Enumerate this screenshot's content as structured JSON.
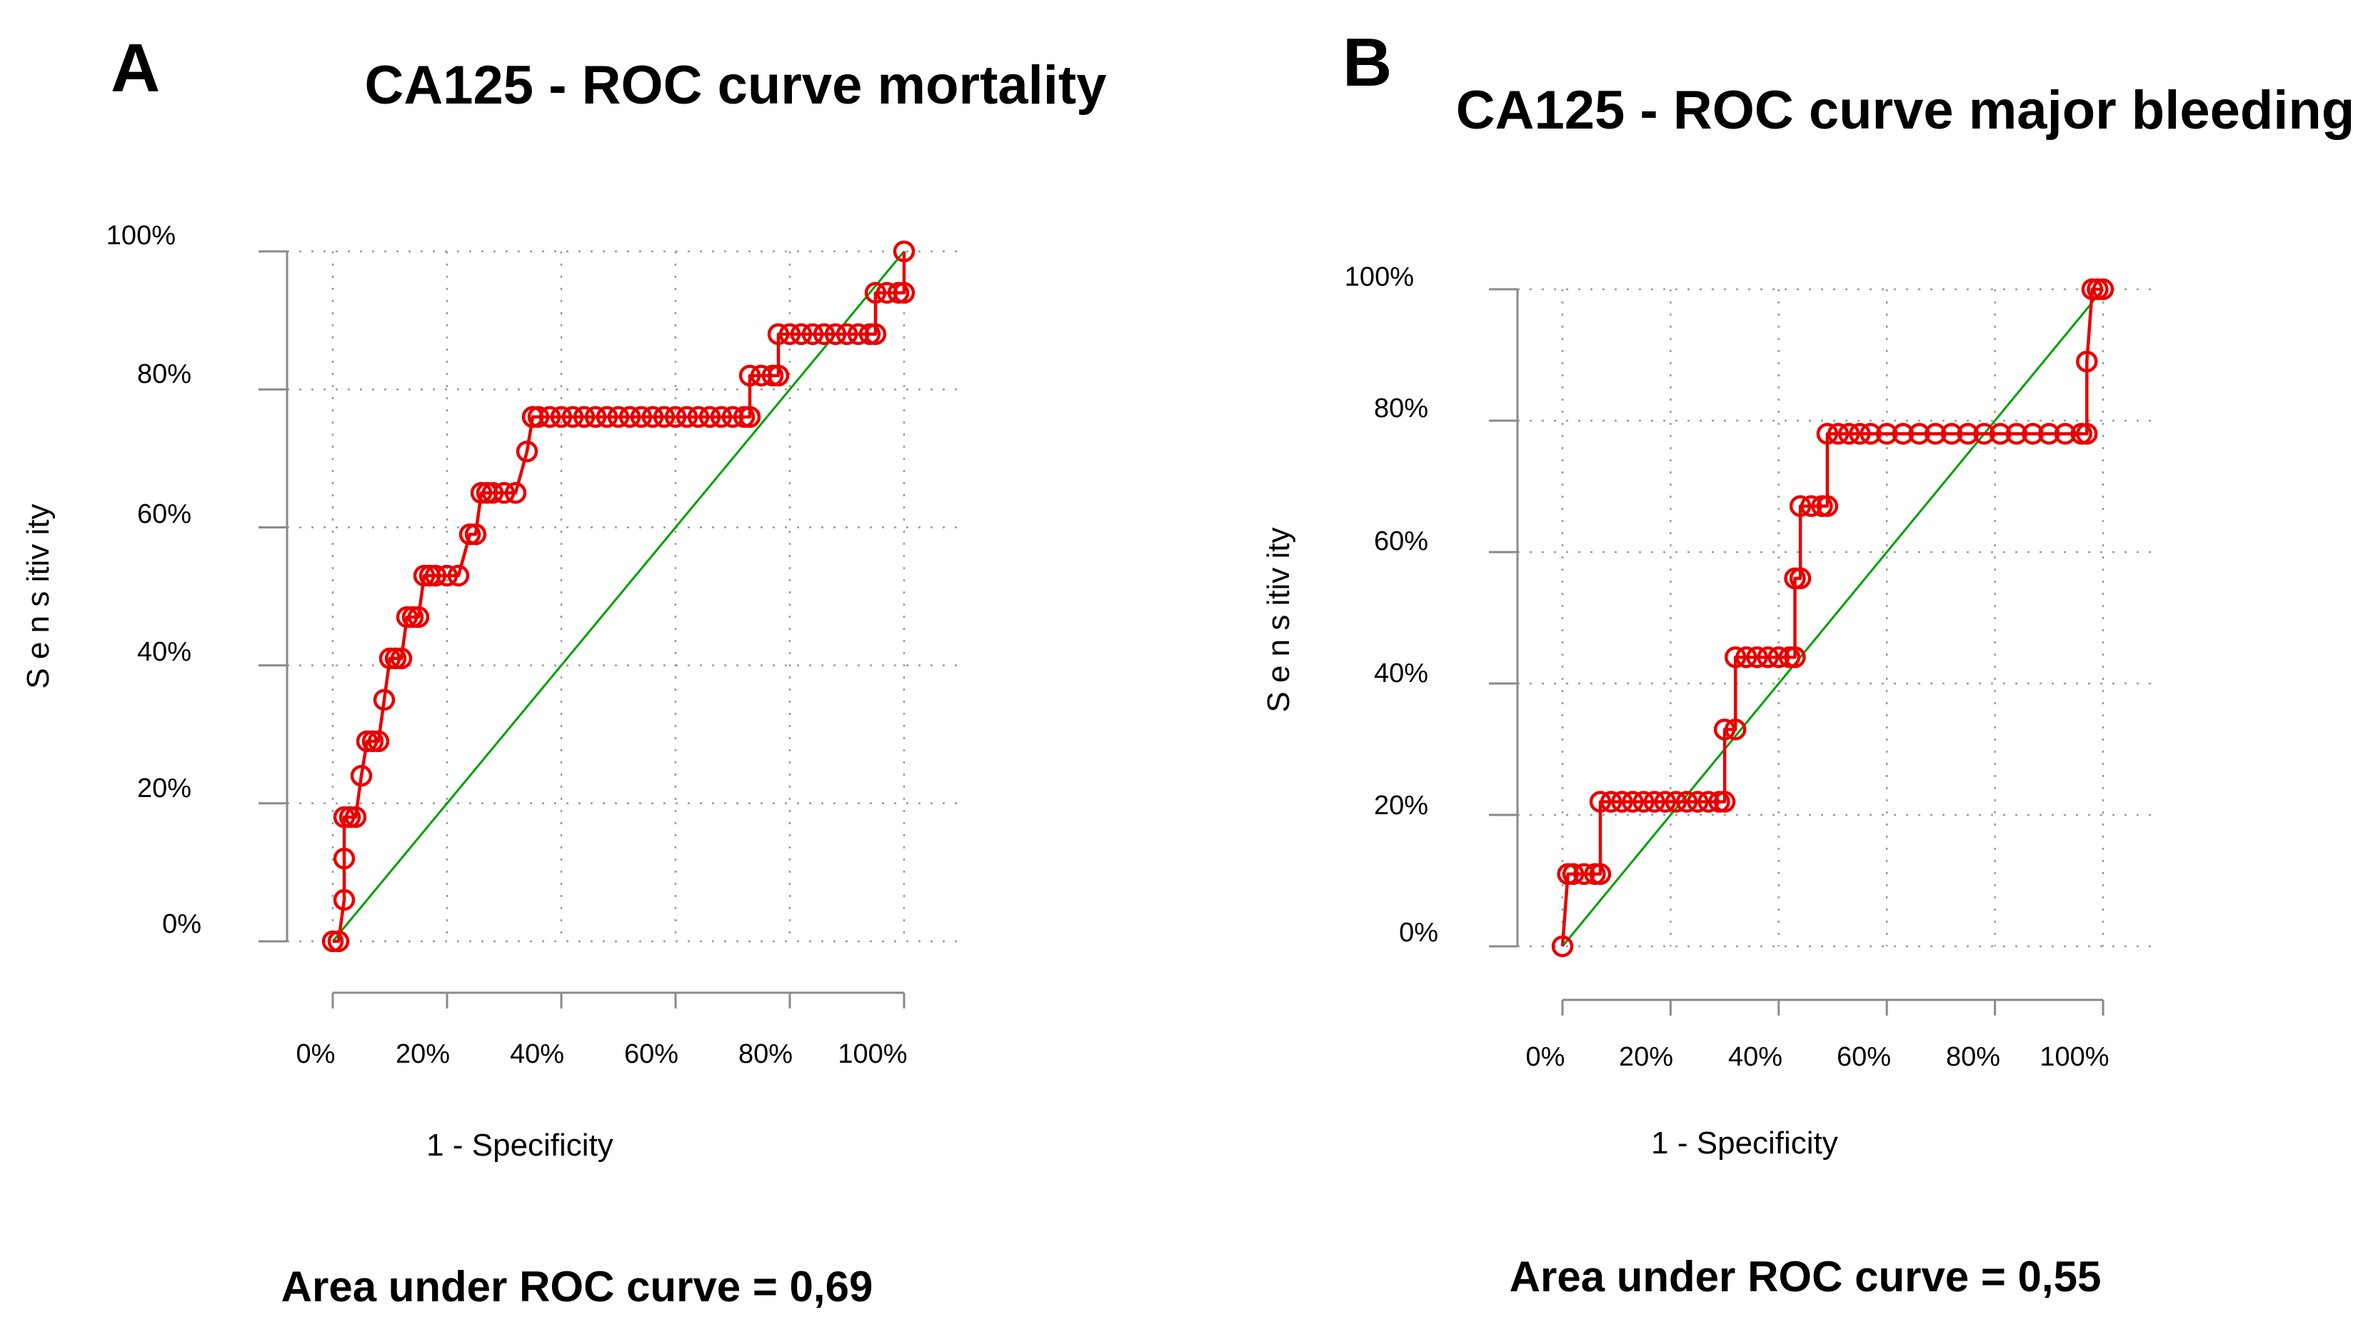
{
  "chart_data": [
    {
      "panel": "A",
      "type": "line",
      "title": "CA125 - ROC curve mortality",
      "xlabel": "1 - Specificity",
      "ylabel": "S e n s itiv ity",
      "xlim": [
        0,
        1
      ],
      "ylim": [
        0,
        1
      ],
      "x_tick_labels": [
        "0%",
        "20%",
        "40%",
        "60%",
        "80%",
        "100%"
      ],
      "y_tick_labels": [
        "0%",
        "20%",
        "40%",
        "60%",
        "80%",
        "100%"
      ],
      "auc_text": "Area under ROC curve = 0,69",
      "series": [
        {
          "name": "ROC",
          "color": "#e80000",
          "x": [
            0,
            0.01,
            0.02,
            0.02,
            0.02,
            0.03,
            0.04,
            0.05,
            0.06,
            0.07,
            0.08,
            0.09,
            0.1,
            0.11,
            0.12,
            0.13,
            0.14,
            0.15,
            0.16,
            0.17,
            0.18,
            0.2,
            0.22,
            0.24,
            0.25,
            0.26,
            0.27,
            0.28,
            0.3,
            0.32,
            0.34,
            0.35,
            0.35,
            0.36,
            0.38,
            0.4,
            0.42,
            0.44,
            0.46,
            0.48,
            0.5,
            0.52,
            0.54,
            0.56,
            0.58,
            0.6,
            0.62,
            0.64,
            0.66,
            0.68,
            0.7,
            0.72,
            0.73,
            0.73,
            0.75,
            0.77,
            0.78,
            0.78,
            0.8,
            0.82,
            0.84,
            0.86,
            0.88,
            0.9,
            0.92,
            0.94,
            0.95,
            0.95,
            0.97,
            0.99,
            1,
            1
          ],
          "y": [
            0,
            0,
            0.06,
            0.12,
            0.18,
            0.18,
            0.18,
            0.24,
            0.29,
            0.29,
            0.29,
            0.35,
            0.41,
            0.41,
            0.41,
            0.47,
            0.47,
            0.47,
            0.53,
            0.53,
            0.53,
            0.53,
            0.53,
            0.59,
            0.59,
            0.65,
            0.65,
            0.65,
            0.65,
            0.65,
            0.71,
            0.76,
            0.76,
            0.76,
            0.76,
            0.76,
            0.76,
            0.76,
            0.76,
            0.76,
            0.76,
            0.76,
            0.76,
            0.76,
            0.76,
            0.76,
            0.76,
            0.76,
            0.76,
            0.76,
            0.76,
            0.76,
            0.76,
            0.82,
            0.82,
            0.82,
            0.82,
            0.88,
            0.88,
            0.88,
            0.88,
            0.88,
            0.88,
            0.88,
            0.88,
            0.88,
            0.88,
            0.94,
            0.94,
            0.94,
            0.94,
            1
          ]
        },
        {
          "name": "Reference",
          "color": "#00a000",
          "x": [
            0,
            1
          ],
          "y": [
            0,
            1
          ]
        }
      ]
    },
    {
      "panel": "B",
      "type": "line",
      "title": "CA125 - ROC curve major bleeding",
      "xlabel": "1 - Specificity",
      "ylabel": "S e n s itiv ity",
      "xlim": [
        0,
        1
      ],
      "ylim": [
        0,
        1
      ],
      "x_tick_labels": [
        "0%",
        "20%",
        "40%",
        "60%",
        "80%",
        "100%"
      ],
      "y_tick_labels": [
        "0%",
        "20%",
        "40%",
        "60%",
        "80%",
        "100%"
      ],
      "auc_text": "Area under ROC curve = 0,55",
      "series": [
        {
          "name": "ROC",
          "color": "#e80000",
          "x": [
            0,
            0.01,
            0.02,
            0.04,
            0.06,
            0.07,
            0.07,
            0.09,
            0.11,
            0.13,
            0.15,
            0.17,
            0.19,
            0.21,
            0.23,
            0.25,
            0.27,
            0.29,
            0.3,
            0.3,
            0.32,
            0.32,
            0.34,
            0.36,
            0.38,
            0.4,
            0.42,
            0.43,
            0.43,
            0.44,
            0.44,
            0.46,
            0.48,
            0.49,
            0.49,
            0.51,
            0.53,
            0.55,
            0.57,
            0.6,
            0.63,
            0.66,
            0.69,
            0.72,
            0.75,
            0.78,
            0.81,
            0.84,
            0.87,
            0.9,
            0.93,
            0.96,
            0.97,
            0.97,
            0.98,
            0.99,
            1
          ],
          "y": [
            0,
            0.11,
            0.11,
            0.11,
            0.11,
            0.11,
            0.22,
            0.22,
            0.22,
            0.22,
            0.22,
            0.22,
            0.22,
            0.22,
            0.22,
            0.22,
            0.22,
            0.22,
            0.22,
            0.33,
            0.33,
            0.44,
            0.44,
            0.44,
            0.44,
            0.44,
            0.44,
            0.44,
            0.56,
            0.56,
            0.67,
            0.67,
            0.67,
            0.67,
            0.78,
            0.78,
            0.78,
            0.78,
            0.78,
            0.78,
            0.78,
            0.78,
            0.78,
            0.78,
            0.78,
            0.78,
            0.78,
            0.78,
            0.78,
            0.78,
            0.78,
            0.78,
            0.78,
            0.89,
            1,
            1,
            1
          ]
        },
        {
          "name": "Reference",
          "color": "#00a000",
          "x": [
            0,
            1
          ],
          "y": [
            0,
            1
          ]
        }
      ]
    }
  ]
}
